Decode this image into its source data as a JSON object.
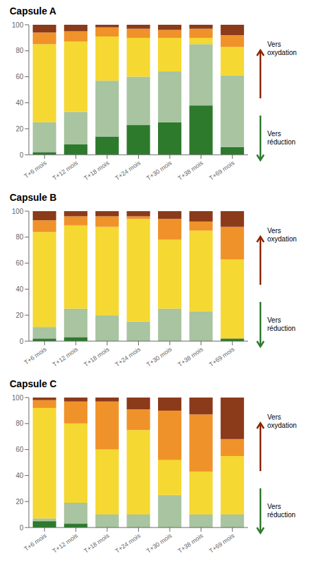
{
  "chart_data": [
    {
      "type": "bar",
      "title": "Capsule A",
      "stacked": true,
      "grid": false,
      "categories": [
        "T+6 mois",
        "T+12 mois",
        "T+18 mois",
        "T+24 mois",
        "T+30 mois",
        "T+38 mois",
        "T+69 mois"
      ],
      "series": [
        {
          "color": "#2d7a2d",
          "values": [
            2,
            8,
            14,
            23,
            25,
            38,
            6
          ]
        },
        {
          "color": "#a8c4a0",
          "values": [
            23,
            25,
            43,
            37,
            39,
            47,
            55
          ]
        },
        {
          "color": "#f5d832",
          "values": [
            60,
            54,
            34,
            30,
            26,
            5,
            22
          ]
        },
        {
          "color": "#f0922a",
          "values": [
            9,
            8,
            7,
            7,
            6,
            7,
            9
          ]
        },
        {
          "color": "#8b3a1a",
          "values": [
            6,
            5,
            2,
            3,
            4,
            3,
            8
          ]
        }
      ],
      "ylim": [
        0,
        100
      ],
      "yticks": [
        0,
        20,
        40,
        60,
        80,
        100
      ],
      "annotations": [
        {
          "text": "Vers\noxydation",
          "color": "#8b2500"
        },
        {
          "text": "Vers\nréduction",
          "color": "#2d7a2d"
        }
      ]
    },
    {
      "type": "bar",
      "title": "Capsule B",
      "stacked": true,
      "grid": false,
      "categories": [
        "T+6 mois",
        "T+12 mois",
        "T+18 mois",
        "T+24 mois",
        "T+30 mois",
        "T+38 mois",
        "T+69 mois"
      ],
      "series": [
        {
          "color": "#2d7a2d",
          "values": [
            2,
            3,
            0,
            0,
            0,
            0,
            2
          ]
        },
        {
          "color": "#a8c4a0",
          "values": [
            9,
            22,
            20,
            15,
            25,
            23,
            0
          ]
        },
        {
          "color": "#f5d832",
          "values": [
            73,
            64,
            68,
            79,
            53,
            62,
            61
          ]
        },
        {
          "color": "#f0922a",
          "values": [
            9,
            7,
            8,
            2,
            16,
            7,
            25
          ]
        },
        {
          "color": "#8b3a1a",
          "values": [
            7,
            4,
            4,
            4,
            6,
            8,
            12
          ]
        }
      ],
      "ylim": [
        0,
        100
      ],
      "yticks": [
        0,
        20,
        40,
        60,
        80,
        100
      ],
      "annotations": [
        {
          "text": "Vers\noxydation",
          "color": "#8b2500"
        },
        {
          "text": "Vers\nréduction",
          "color": "#2d7a2d"
        }
      ]
    },
    {
      "type": "bar",
      "title": "Capsule C",
      "stacked": true,
      "grid": false,
      "categories": [
        "T+6 mois",
        "T+12 mois",
        "T+18 mois",
        "T+24 mois",
        "T+30 mois",
        "T+38 mois",
        "T+69 mois"
      ],
      "series": [
        {
          "color": "#2d7a2d",
          "values": [
            5,
            3,
            0,
            0,
            0,
            0,
            0
          ]
        },
        {
          "color": "#a8c4a0",
          "values": [
            2,
            16,
            10,
            10,
            25,
            10,
            10
          ]
        },
        {
          "color": "#f5d832",
          "values": [
            85,
            61,
            50,
            65,
            27,
            33,
            45
          ]
        },
        {
          "color": "#f0922a",
          "values": [
            6,
            17,
            37,
            16,
            38,
            44,
            13
          ]
        },
        {
          "color": "#8b3a1a",
          "values": [
            2,
            3,
            3,
            9,
            10,
            13,
            32
          ]
        }
      ],
      "ylim": [
        0,
        100
      ],
      "yticks": [
        0,
        20,
        40,
        60,
        80,
        100
      ],
      "annotations": [
        {
          "text": "Vers\noxydation",
          "color": "#8b2500"
        },
        {
          "text": "Vers\nréduction",
          "color": "#2d7a2d"
        }
      ]
    }
  ]
}
